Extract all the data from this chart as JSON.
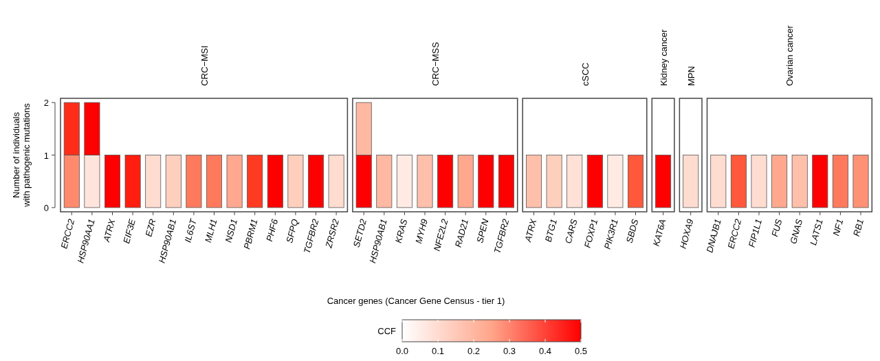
{
  "chart_data": [
    {
      "type": "bar",
      "stacked": true,
      "title": "CRC−MSI",
      "ylabel": "Number of individuals\nwith pathogenic mutations",
      "xlabel": "Cancer genes (Cancer Gene Census - tier 1)",
      "clabel": "CCF",
      "clim": [
        0,
        0.5
      ],
      "cticks": [
        {
          "value": 0,
          "label": "0.0"
        },
        {
          "value": 0.1,
          "label": "0.1"
        },
        {
          "value": 0.2,
          "label": "0.2"
        },
        {
          "value": 0.3,
          "label": "0.3"
        },
        {
          "value": 0.4,
          "label": "0.4"
        },
        {
          "value": 0.5,
          "label": "0.5"
        }
      ],
      "ylim": [
        -0.08,
        2.08
      ],
      "yticks": [
        0,
        1,
        2
      ],
      "categories": [
        "ERCC2",
        "HSP90AA1",
        "ATRX",
        "EIF3E",
        "EZR",
        "HSP90AB1",
        "IL6ST",
        "MLH1",
        "NSD1",
        "PBRM1",
        "PHF6",
        "SFPQ",
        "TGFBR2",
        "ZRSR2"
      ],
      "series": [
        {
          "values": [
            1,
            1,
            1,
            1,
            1,
            1,
            1,
            1,
            1,
            1,
            1,
            1,
            1,
            1
          ],
          "colors": [
            "#ff8a6e",
            "#ffe4dc",
            "#ff0000",
            "#ff1e10",
            "#ffdcd0",
            "#ffcfbe",
            "#ff7a5c",
            "#ff7a5c",
            "#ffa88f",
            "#ff3a22",
            "#ff0000",
            "#ffcfbe",
            "#ff0000",
            "#ffdcd0"
          ]
        },
        {
          "values": [
            1,
            1,
            null,
            null,
            null,
            null,
            null,
            null,
            null,
            null,
            null,
            null,
            null,
            null
          ],
          "colors": [
            "#ff2d18",
            "#ff0000",
            null,
            null,
            null,
            null,
            null,
            null,
            null,
            null,
            null,
            null,
            null,
            null
          ]
        }
      ]
    },
    {
      "type": "bar",
      "stacked": true,
      "title": "CRC−MSS",
      "ylim": [
        -0.08,
        2.08
      ],
      "tick_labels": "x",
      "categories": [
        "SETD2",
        "HSP90AB1",
        "KRAS",
        "MYH9",
        "NFE2L2",
        "RAD21",
        "SPEN",
        "TGFBR2"
      ],
      "series": [
        {
          "values": [
            1,
            1,
            1,
            1,
            1,
            1,
            1,
            1
          ],
          "colors": [
            "#ff0000",
            "#ffb8a2",
            "#ffebe4",
            "#ffc0ab",
            "#ff0000",
            "#ffa88e",
            "#ff0000",
            "#ff0000"
          ]
        },
        {
          "values": [
            1,
            null,
            null,
            null,
            null,
            null,
            null,
            null
          ],
          "colors": [
            "#ffb8a2",
            null,
            null,
            null,
            null,
            null,
            null,
            null
          ]
        }
      ]
    },
    {
      "type": "bar",
      "stacked": true,
      "title": "cSCC",
      "ylim": [
        -0.08,
        2.08
      ],
      "tick_labels": "x",
      "categories": [
        "ATRX",
        "BTG1",
        "CARS",
        "FOXP1",
        "PIK3R1",
        "SBDS"
      ],
      "series": [
        {
          "values": [
            1,
            1,
            1,
            1,
            1,
            1
          ],
          "colors": [
            "#ffc0ab",
            "#ffcfbe",
            "#ffe1d7",
            "#ff0000",
            "#ffebe4",
            "#ff583a"
          ]
        }
      ]
    },
    {
      "type": "bar",
      "stacked": true,
      "title": "Kidney cancer",
      "ylim": [
        -0.08,
        2.08
      ],
      "tick_labels": "x",
      "categories": [
        "KAT6A"
      ],
      "series": [
        {
          "values": [
            1
          ],
          "colors": [
            "#ff0000"
          ]
        }
      ]
    },
    {
      "type": "bar",
      "stacked": true,
      "title": "MPN",
      "ylim": [
        -0.08,
        2.08
      ],
      "tick_labels": "x",
      "categories": [
        "HOXA9"
      ],
      "series": [
        {
          "values": [
            1
          ],
          "colors": [
            "#ffdcd0"
          ]
        }
      ]
    },
    {
      "type": "bar",
      "stacked": true,
      "title": "Ovarian cancer",
      "ylim": [
        -0.08,
        2.08
      ],
      "tick_labels": "x",
      "categories": [
        "DNAJB1",
        "ERCC2",
        "FIP1L1",
        "FUS",
        "GNAS",
        "LATS1",
        "NF1",
        "RB1"
      ],
      "series": [
        {
          "values": [
            1,
            1,
            1,
            1,
            1,
            1,
            1,
            1
          ],
          "colors": [
            "#ffdcd0",
            "#ff583a",
            "#ffdcd0",
            "#ffa88e",
            "#ffc0ab",
            "#ff0000",
            "#ff7a5c",
            "#ff9275"
          ]
        }
      ]
    }
  ]
}
